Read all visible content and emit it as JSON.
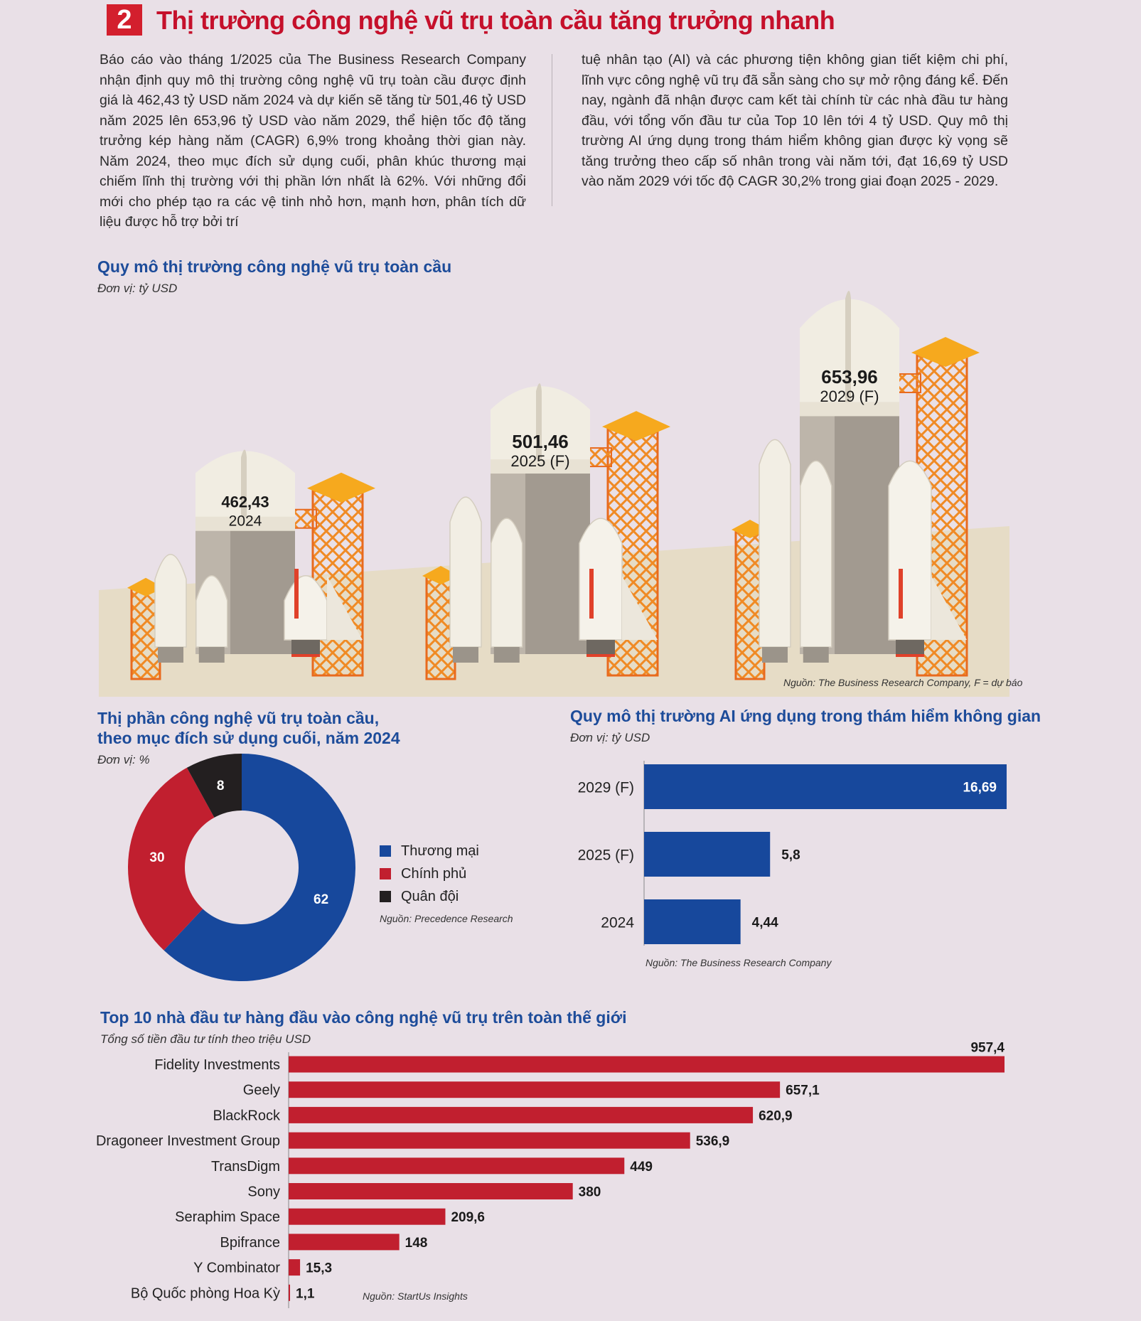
{
  "header": {
    "number": "2",
    "title": "Thị trường công nghệ vũ trụ toàn cầu tăng trưởng nhanh"
  },
  "intro": {
    "col1": "Báo cáo vào tháng 1/2025 của The Business Research Company nhận định quy mô thị trường công nghệ vũ trụ toàn cầu được định giá là 462,43 tỷ USD năm 2024 và dự kiến sẽ tăng từ 501,46 tỷ USD năm 2025 lên 653,96 tỷ USD vào năm 2029, thể hiện tốc độ tăng trưởng kép hàng năm (CAGR) 6,9% trong khoảng thời gian này. Năm 2024, theo mục đích sử dụng cuối, phân khúc thương mại chiếm lĩnh thị trường với thị phần lớn nhất là 62%. Với những đổi mới cho phép tạo ra các vệ tinh nhỏ hơn, mạnh hơn, phân tích dữ liệu được hỗ trợ bởi trí",
    "col2": "tuệ nhân tạo (AI) và các phương tiện không gian tiết kiệm chi phí, lĩnh vực công nghệ vũ trụ đã sẵn sàng cho sự mở rộng đáng kể. Đến nay, ngành đã nhận được cam kết tài chính từ các nhà đầu tư hàng đầu, với tổng vốn đầu tư của Top 10 lên tới 4 tỷ USD. Quy mô thị trường AI ứng dụng trong thám hiểm không gian được kỳ vọng sẽ tăng trưởng theo cấp số nhân trong vài năm tới, đạt 16,69 tỷ USD vào năm 2029 với tốc độ CAGR 30,2% trong giai đoạn 2025 - 2029."
  },
  "colors": {
    "blue": "#17489c",
    "red": "#c11f2f",
    "black": "#231f20",
    "orange": "#f5a623",
    "title_red": "#c5102b",
    "title_blue": "#1d4c9a"
  },
  "chart_data": [
    {
      "type": "bar",
      "id": "market-size-rockets",
      "title": "Quy mô thị trường công nghệ vũ trụ toàn cầu",
      "unit": "Đơn vị: tỷ USD",
      "categories": [
        "2024",
        "2025 (F)",
        "2029 (F)"
      ],
      "values": [
        462.43,
        501.46,
        653.96
      ],
      "value_labels": [
        "462,43",
        "501,46",
        "653,96"
      ],
      "source": "Nguồn: The Business Research Company, F = dự báo"
    },
    {
      "type": "pie",
      "id": "end-use-share",
      "title": "Thị phần công nghệ vũ trụ toàn cầu, theo mục đích sử dụng cuối, năm 2024",
      "title_line1": "Thị phần công nghệ vũ trụ toàn cầu,",
      "title_line2": "theo mục đích sử dụng cuối, năm 2024",
      "unit": "Đơn vị: %",
      "categories": [
        "Thương mại",
        "Chính phủ",
        "Quân đội"
      ],
      "values": [
        62,
        30,
        8
      ],
      "value_labels": [
        "62",
        "30",
        "8"
      ],
      "colors": [
        "#17489c",
        "#c11f2f",
        "#231f20"
      ],
      "source": "Nguồn: Precedence Research"
    },
    {
      "type": "bar",
      "id": "ai-space-market",
      "orientation": "horizontal",
      "title": "Quy mô thị trường AI ứng dụng trong thám hiểm không gian",
      "unit": "Đơn vị: tỷ USD",
      "categories": [
        "2029 (F)",
        "2025 (F)",
        "2024"
      ],
      "values": [
        16.69,
        5.8,
        4.44
      ],
      "value_labels": [
        "16,69",
        "5,8",
        "4,44"
      ],
      "xlim": [
        0,
        16.69
      ],
      "source": "Nguồn: The Business Research Company"
    },
    {
      "type": "bar",
      "id": "top10-investors",
      "orientation": "horizontal",
      "title": "Top 10 nhà đầu tư hàng đầu vào công nghệ vũ trụ trên toàn thế giới",
      "unit": "Tổng số tiền đầu tư tính theo triệu USD",
      "categories": [
        "Fidelity Investments",
        "Geely",
        "BlackRock",
        "Dragoneer Investment Group",
        "TransDigm",
        "Sony",
        "Seraphim Space",
        "Bpifrance",
        "Y Combinator",
        "Bộ Quốc phòng Hoa Kỳ"
      ],
      "values": [
        957.4,
        657.1,
        620.9,
        536.9,
        449,
        380,
        209.6,
        148,
        15.3,
        1.1
      ],
      "value_labels": [
        "957,4",
        "657,1",
        "620,9",
        "536,9",
        "449",
        "380",
        "209,6",
        "148",
        "15,3",
        "1,1"
      ],
      "xlim": [
        0,
        957.4
      ],
      "source": "Nguồn: StartUs Insights"
    }
  ]
}
